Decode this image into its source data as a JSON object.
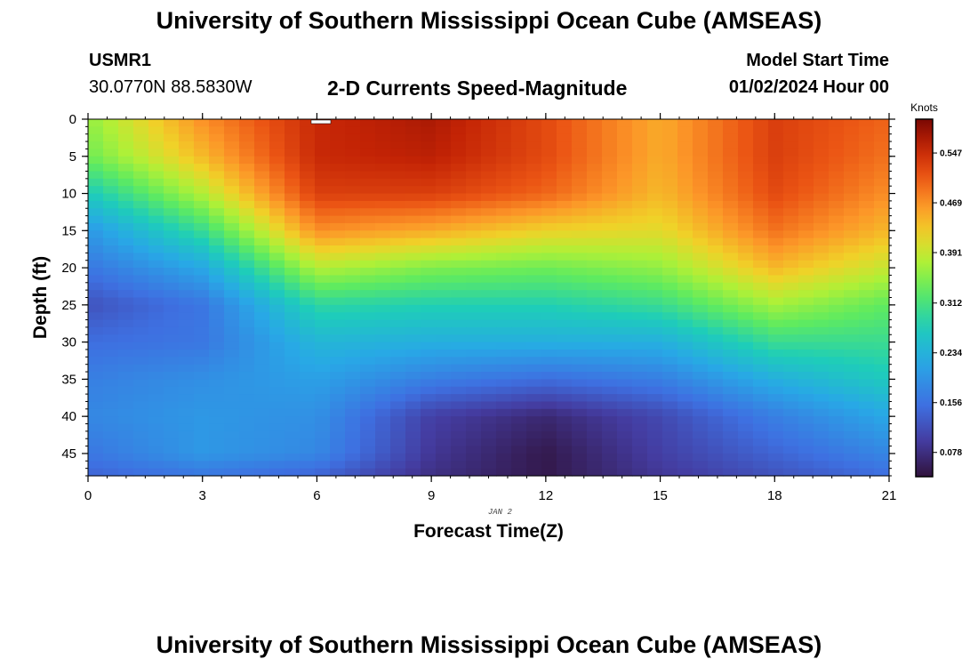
{
  "header": {
    "title": "University of Southern Mississippi Ocean Cube (AMSEAS)",
    "station": "USMR1",
    "location": "30.0770N  88.5830W",
    "subtitle": "2-D Currents Speed-Magnitude",
    "start_label": "Model Start Time",
    "start_value": "01/02/2024 Hour 00"
  },
  "footer": {
    "title": "University of Southern Mississippi Ocean Cube (AMSEAS)"
  },
  "chart_data": {
    "type": "heatmap",
    "title": "2-D Currents Speed-Magnitude",
    "xlabel": "Forecast Time(Z)",
    "ylabel": "Depth (ft)",
    "date_label": "JAN 2",
    "x_ticks": [
      0,
      3,
      6,
      9,
      12,
      15,
      18,
      21
    ],
    "y_ticks": [
      0,
      5,
      10,
      15,
      20,
      25,
      30,
      35,
      40,
      45
    ],
    "xlim": [
      0,
      21
    ],
    "ylim": [
      48,
      0
    ],
    "colorbar": {
      "label": "Knots",
      "ticks": [
        0.078,
        0.156,
        0.234,
        0.312,
        0.391,
        0.469,
        0.547
      ],
      "range": [
        0.04,
        0.6
      ]
    },
    "x": [
      0,
      3,
      6,
      9,
      12,
      15,
      18,
      21
    ],
    "depths": [
      0,
      5,
      10,
      15,
      20,
      25,
      30,
      35,
      40,
      45,
      48
    ],
    "values": [
      [
        0.36,
        0.47,
        0.55,
        0.57,
        0.52,
        0.45,
        0.53,
        0.5
      ],
      [
        0.34,
        0.44,
        0.55,
        0.56,
        0.52,
        0.45,
        0.53,
        0.49
      ],
      [
        0.27,
        0.38,
        0.53,
        0.53,
        0.5,
        0.44,
        0.52,
        0.47
      ],
      [
        0.2,
        0.3,
        0.47,
        0.45,
        0.42,
        0.41,
        0.49,
        0.44
      ],
      [
        0.16,
        0.22,
        0.38,
        0.35,
        0.34,
        0.36,
        0.44,
        0.39
      ],
      [
        0.12,
        0.16,
        0.29,
        0.28,
        0.28,
        0.3,
        0.37,
        0.33
      ],
      [
        0.15,
        0.16,
        0.24,
        0.23,
        0.23,
        0.23,
        0.3,
        0.3
      ],
      [
        0.17,
        0.19,
        0.21,
        0.17,
        0.15,
        0.17,
        0.23,
        0.27
      ],
      [
        0.18,
        0.2,
        0.19,
        0.1,
        0.07,
        0.11,
        0.17,
        0.22
      ],
      [
        0.16,
        0.2,
        0.18,
        0.09,
        0.05,
        0.1,
        0.14,
        0.18
      ],
      [
        0.14,
        0.16,
        0.14,
        0.08,
        0.05,
        0.09,
        0.12,
        0.15
      ]
    ]
  }
}
